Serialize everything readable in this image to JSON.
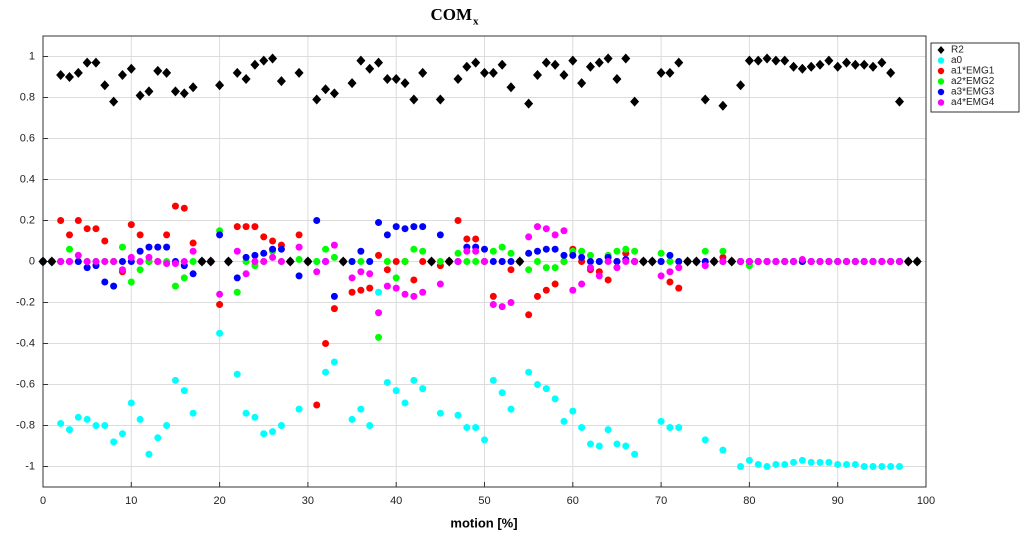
{
  "chart_data": {
    "type": "scatter",
    "title": "COM",
    "title_subscript": "x",
    "x_label": "motion [%]",
    "x": [
      0,
      1,
      2,
      3,
      4,
      5,
      6,
      7,
      8,
      9,
      10,
      11,
      12,
      13,
      14,
      15,
      16,
      17,
      18,
      19,
      20,
      21,
      22,
      23,
      24,
      25,
      26,
      27,
      28,
      29,
      30,
      31,
      32,
      33,
      34,
      35,
      36,
      37,
      38,
      39,
      40,
      41,
      42,
      43,
      44,
      45,
      46,
      47,
      48,
      49,
      50,
      51,
      52,
      53,
      54,
      55,
      56,
      57,
      58,
      59,
      60,
      61,
      62,
      63,
      64,
      65,
      66,
      67,
      68,
      69,
      70,
      71,
      72,
      73,
      74,
      75,
      76,
      77,
      78,
      79,
      80,
      81,
      82,
      83,
      84,
      85,
      86,
      87,
      88,
      89,
      90,
      91,
      92,
      93,
      94,
      95,
      96,
      97,
      98,
      99
    ],
    "xlim": [
      0,
      100
    ],
    "xticks": [
      0,
      10,
      20,
      30,
      40,
      50,
      60,
      70,
      80,
      90,
      100
    ],
    "ylim": [
      -1.1,
      1.1
    ],
    "yticks": [
      -1,
      -0.8,
      -0.6,
      -0.4,
      -0.2,
      0,
      0.2,
      0.4,
      0.6,
      0.8,
      1
    ],
    "grid": true,
    "legend": "outside-top-right",
    "series": [
      {
        "name": "R2",
        "color": "#000000",
        "marker": "diamond",
        "values": [
          0,
          0,
          0.91,
          0.9,
          0.92,
          0.97,
          0.97,
          0.86,
          0.78,
          0.91,
          0.94,
          0.81,
          0.83,
          0.93,
          0.92,
          0.83,
          0.82,
          0.85,
          0,
          0,
          0.86,
          0,
          0.92,
          0.89,
          0.96,
          0.98,
          0.99,
          0.88,
          0,
          0.92,
          0,
          0.79,
          0.84,
          0.82,
          0,
          0.87,
          0.98,
          0.94,
          0.97,
          0.89,
          0.89,
          0.87,
          0.79,
          0.92,
          0,
          0.79,
          0,
          0.89,
          0.95,
          0.97,
          0.92,
          0.92,
          0.96,
          0.85,
          0,
          0.77,
          0.91,
          0.97,
          0.96,
          0.91,
          0.98,
          0.87,
          0.95,
          0.97,
          0.99,
          0.89,
          0.99,
          0.78,
          0,
          0,
          0.92,
          0.92,
          0.97,
          0,
          0,
          0.79,
          0,
          0.76,
          0,
          0.86,
          0.98,
          0.98,
          0.99,
          0.98,
          0.98,
          0.95,
          0.94,
          0.95,
          0.96,
          0.98,
          0.95,
          0.97,
          0.96,
          0.96,
          0.95,
          0.97,
          0.92,
          0.78,
          0,
          0
        ]
      },
      {
        "name": "a0",
        "color": "#00ffff",
        "marker": "circle",
        "values": [
          0,
          0,
          -0.79,
          -0.82,
          -0.76,
          -0.77,
          -0.8,
          -0.8,
          -0.88,
          -0.84,
          -0.69,
          -0.77,
          -0.94,
          -0.86,
          -0.8,
          -0.58,
          -0.63,
          -0.74,
          0,
          0,
          -0.35,
          0,
          -0.55,
          -0.74,
          -0.76,
          -0.84,
          -0.83,
          -0.8,
          0,
          -0.72,
          0,
          0,
          -0.54,
          -0.49,
          0,
          -0.77,
          -0.72,
          -0.8,
          -0.15,
          -0.59,
          -0.63,
          -0.69,
          -0.58,
          -0.62,
          0,
          -0.74,
          0,
          -0.75,
          -0.81,
          -0.81,
          -0.87,
          -0.58,
          -0.64,
          -0.72,
          0,
          -0.54,
          -0.6,
          -0.62,
          -0.67,
          -0.78,
          -0.73,
          -0.81,
          -0.89,
          -0.9,
          -0.82,
          -0.89,
          -0.9,
          -0.94,
          0,
          0,
          -0.78,
          -0.81,
          -0.81,
          0,
          0,
          -0.87,
          0,
          -0.92,
          0,
          -1,
          -0.97,
          -0.99,
          -1,
          -0.99,
          -0.99,
          -0.98,
          -0.97,
          -0.98,
          -0.98,
          -0.98,
          -0.99,
          -0.99,
          -0.99,
          -1,
          -1,
          -1,
          -1,
          -1,
          0,
          0
        ]
      },
      {
        "name": "a1*EMG1",
        "color": "#ff0000",
        "marker": "circle",
        "values": [
          0,
          0,
          0.2,
          0.13,
          0.2,
          0.16,
          0.16,
          0.1,
          0,
          -0.05,
          0.18,
          0.13,
          0,
          0,
          0.13,
          0.27,
          0.26,
          0.09,
          0,
          0,
          -0.21,
          0,
          0.17,
          0.17,
          0.17,
          0.12,
          0.1,
          0.08,
          0,
          0.13,
          0,
          -0.7,
          -0.4,
          -0.23,
          0,
          -0.15,
          -0.14,
          -0.13,
          0.03,
          -0.04,
          0,
          0,
          -0.09,
          0,
          0,
          -0.02,
          0,
          0.2,
          0.11,
          0.11,
          0,
          -0.17,
          0,
          -0.04,
          0,
          -0.26,
          -0.17,
          -0.14,
          -0.11,
          0,
          0.06,
          0,
          -0.04,
          -0.05,
          -0.09,
          0,
          0.04,
          0,
          0,
          0,
          0,
          -0.1,
          -0.13,
          0,
          0,
          0,
          0,
          0.02,
          0,
          0,
          0,
          0,
          0,
          0,
          0,
          0,
          0,
          0,
          0,
          0,
          0,
          0,
          0,
          0,
          0,
          0,
          0,
          0,
          0,
          0
        ]
      },
      {
        "name": "a2*EMG2",
        "color": "#00ff00",
        "marker": "circle",
        "values": [
          0,
          0,
          0,
          0.06,
          0,
          0,
          0,
          0,
          0,
          0.07,
          -0.1,
          -0.04,
          0,
          0,
          0,
          -0.12,
          -0.08,
          0,
          0,
          0,
          0.15,
          0,
          -0.15,
          0,
          -0.02,
          0,
          0.05,
          0,
          0,
          0.01,
          0,
          0,
          0.06,
          0.02,
          0,
          0,
          0,
          0,
          -0.37,
          0,
          -0.08,
          0,
          0.06,
          0.05,
          0,
          0,
          0,
          0.04,
          0,
          0,
          0,
          0.05,
          0.07,
          0.04,
          0,
          -0.04,
          0,
          -0.03,
          -0.03,
          0,
          0.05,
          0.05,
          0.03,
          0,
          0.03,
          0.05,
          0.06,
          0.05,
          0,
          0,
          0.04,
          0,
          0,
          0,
          0,
          0.05,
          0,
          0.05,
          0,
          0,
          -0.02,
          0,
          0,
          0,
          0,
          0,
          0,
          0,
          0,
          0,
          0,
          0,
          0,
          0,
          0,
          0,
          0,
          0,
          0,
          0
        ]
      },
      {
        "name": "a3*EMG3",
        "color": "#0000ff",
        "marker": "circle",
        "values": [
          0,
          0,
          0,
          0,
          0,
          -0.03,
          -0.02,
          -0.1,
          -0.12,
          0,
          0,
          0.05,
          0.07,
          0.07,
          0.07,
          0,
          -0.02,
          -0.06,
          0,
          0,
          0.13,
          0,
          -0.08,
          0.02,
          0.03,
          0.04,
          0.06,
          0.06,
          0,
          -0.07,
          0,
          0.2,
          0,
          -0.17,
          0,
          0,
          0.05,
          0,
          0.19,
          0.13,
          0.17,
          0.16,
          0.17,
          0.17,
          0,
          0.13,
          0,
          0,
          0.07,
          0.07,
          0.06,
          0,
          0,
          0,
          0,
          0.04,
          0.05,
          0.06,
          0.06,
          0.03,
          0.03,
          0.02,
          0,
          0,
          0.02,
          0,
          0.01,
          0,
          0,
          0,
          0,
          0.03,
          0,
          0,
          0,
          0,
          0,
          0,
          0,
          0,
          0,
          0,
          0,
          0,
          0,
          0,
          0,
          0,
          0,
          0,
          0,
          0,
          0,
          0,
          0,
          0,
          0,
          0,
          0,
          0
        ]
      },
      {
        "name": "a4*EMG4",
        "color": "#ff00ff",
        "marker": "circle",
        "values": [
          0,
          0,
          0,
          0,
          0.03,
          0,
          0,
          0,
          0,
          -0.04,
          0.02,
          0,
          0.02,
          0,
          -0.01,
          -0.01,
          0,
          0.05,
          0,
          0,
          -0.16,
          0,
          0.05,
          -0.06,
          0,
          0,
          0.02,
          0,
          0,
          0.07,
          0,
          -0.05,
          0,
          0.08,
          0,
          -0.08,
          -0.05,
          -0.06,
          -0.25,
          -0.12,
          -0.13,
          -0.16,
          -0.17,
          -0.15,
          0,
          -0.11,
          0,
          0,
          0.05,
          0.05,
          0,
          -0.21,
          -0.22,
          -0.2,
          0,
          0.12,
          0.17,
          0.16,
          0.13,
          0.15,
          -0.14,
          -0.11,
          -0.03,
          -0.07,
          0,
          -0.03,
          0,
          0,
          0,
          0,
          -0.07,
          -0.05,
          -0.03,
          0,
          0,
          -0.02,
          0,
          0,
          0,
          0,
          0,
          0,
          0,
          0,
          0,
          0,
          0.01,
          0,
          0,
          0,
          0,
          0,
          0,
          0,
          0,
          0,
          0,
          0,
          0,
          0
        ]
      }
    ]
  }
}
